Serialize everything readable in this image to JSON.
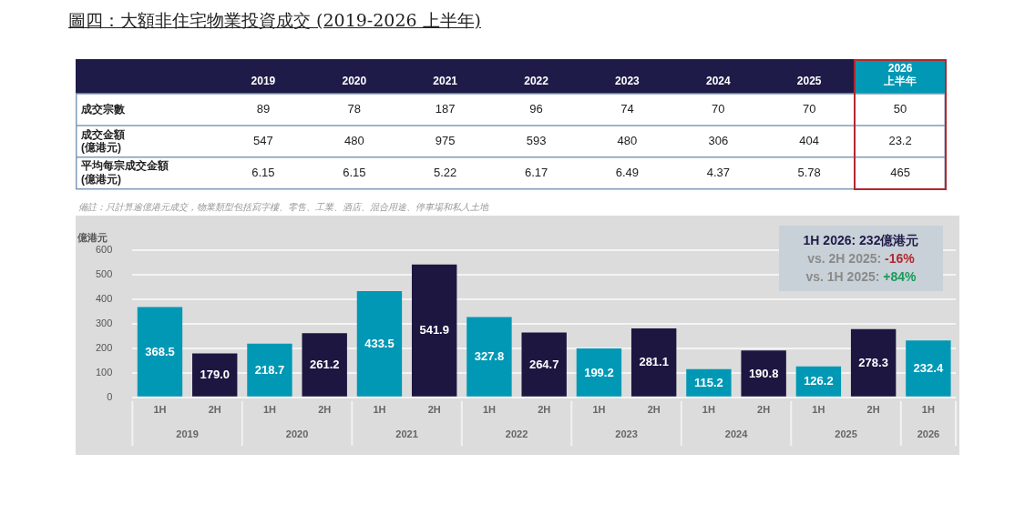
{
  "chart_data": [
    {
      "type": "heatmap",
      "title": "圖四：大額非住宅物業投資成交 (2019-2026 上半年)",
      "categories": [
        "2019",
        "2020",
        "2021",
        "2022",
        "2023",
        "2024",
        "2025",
        "2026 上半年"
      ],
      "y_categories": [
        "成交宗數",
        "成交金額 (億港元)",
        "平均每宗成交金額 (億港元)"
      ],
      "cells": [
        [
          89,
          78,
          187,
          96,
          74,
          70,
          70,
          50
        ],
        [
          547,
          480,
          975,
          593,
          480,
          306,
          404,
          23.2
        ],
        [
          6.15,
          6.15,
          5.22,
          6.17,
          6.49,
          4.37,
          5.78,
          465
        ]
      ],
      "data_labels": true,
      "annotations": [
        "備註：只計算逾億港元成交，物業類型包括寫字樓、零售、工業、酒店、混合用途、停車場和私人土地"
      ]
    },
    {
      "type": "bar",
      "ylabel": "億港元",
      "categories": [
        "1H",
        "2H",
        "1H",
        "2H",
        "1H",
        "2H",
        "1H",
        "2H",
        "1H",
        "2H",
        "1H",
        "2H",
        "1H",
        "2H",
        "1H"
      ],
      "values": [
        368.5,
        179.0,
        218.7,
        261.2,
        433.5,
        541.9,
        327.8,
        264.7,
        199.2,
        281.1,
        115.2,
        190.8,
        126.2,
        278.3,
        232.4
      ],
      "colors": [
        "#0098b5",
        "#1c1641",
        "#0098b5",
        "#1c1641",
        "#0098b5",
        "#1c1641",
        "#0098b5",
        "#1c1641",
        "#0098b5",
        "#1c1641",
        "#0098b5",
        "#1c1641",
        "#0098b5",
        "#1c1641",
        "#0098b5"
      ],
      "value_labels": [
        "368.5",
        "179.0",
        "218.7",
        "261.2",
        "433.5",
        "541.9",
        "327.8",
        "264.7",
        "199.2",
        "281.1",
        "115.2",
        "190.8",
        "126.2",
        "278.3",
        "232.4"
      ],
      "ylim": [
        0,
        600
      ],
      "yticks": [
        0,
        100,
        200,
        300,
        400,
        500,
        600
      ],
      "grid": "y",
      "annotations": [
        "1H 2026: 232億港元",
        "vs. 2H 2025: -16%",
        "vs. 1H 2025: +84%",
        "2019",
        "2020",
        "2021",
        "2022",
        "2023",
        "2024",
        "2025",
        "2026"
      ]
    }
  ]
}
